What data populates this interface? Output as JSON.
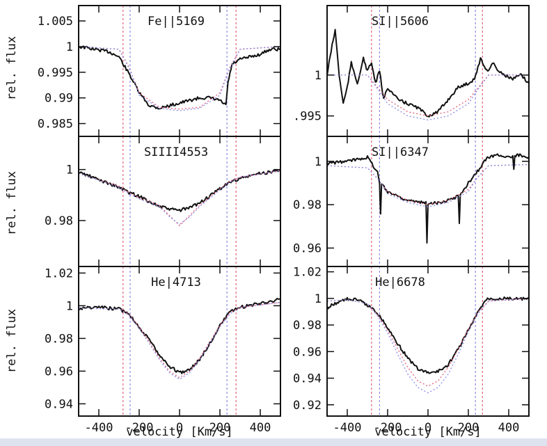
{
  "colors": {
    "model_red": "#e0607a",
    "model_blue": "#8a8ae8",
    "observed": "#111111"
  },
  "chart_data": [
    {
      "type": "line",
      "title": "Fe||5169",
      "xlabel": "",
      "ylabel": "rel. flux",
      "xlim": [
        -500,
        500
      ],
      "ylim": [
        0.9825,
        1.008
      ],
      "yticks": [
        1.005,
        1,
        0.995,
        0.99,
        0.985
      ],
      "ytick_labels": [
        "1.005",
        "1",
        "0.995",
        "0.99",
        "0.985"
      ],
      "xticks": [
        -400,
        -200,
        0,
        200,
        400
      ],
      "xtick_labels": [
        "",
        "",
        "",
        "",
        ""
      ],
      "vlines": {
        "red": [
          -280,
          280
        ],
        "blue": [
          -245,
          235
        ]
      },
      "series": [
        {
          "role": "observed",
          "x": [
            -500,
            -420,
            -350,
            -300,
            -270,
            -240,
            -200,
            -150,
            -100,
            -50,
            0,
            50,
            100,
            150,
            200,
            230,
            240,
            260,
            300,
            350,
            400,
            450,
            500
          ],
          "y": [
            1.0,
            0.9995,
            0.999,
            0.998,
            0.996,
            0.994,
            0.991,
            0.9885,
            0.988,
            0.9885,
            0.989,
            0.9895,
            0.99,
            0.99,
            0.9895,
            0.9885,
            0.993,
            0.9965,
            0.9975,
            0.998,
            0.9985,
            0.9995,
            0.9995
          ]
        },
        {
          "role": "model-red",
          "x": [
            -500,
            -300,
            -250,
            -200,
            -100,
            0,
            100,
            200,
            250,
            300,
            500
          ],
          "y": [
            1.0,
            0.9995,
            0.996,
            0.991,
            0.9882,
            0.9878,
            0.9882,
            0.991,
            0.996,
            0.9995,
            1.0
          ]
        },
        {
          "role": "model-blue",
          "x": [
            -500,
            -300,
            -240,
            -200,
            -100,
            0,
            100,
            200,
            240,
            300,
            500
          ],
          "y": [
            1.0,
            0.9995,
            0.995,
            0.9905,
            0.988,
            0.9875,
            0.988,
            0.9905,
            0.995,
            0.9995,
            1.0
          ]
        }
      ]
    },
    {
      "type": "line",
      "title": "SI||5606",
      "xlabel": "",
      "ylabel": "",
      "xlim": [
        -500,
        500
      ],
      "ylim": [
        0.9925,
        1.0085
      ],
      "yticks": [
        1,
        0.995
      ],
      "ytick_labels": [
        "1",
        ".995"
      ],
      "xticks": [
        -400,
        -200,
        0,
        200,
        400
      ],
      "xtick_labels": [
        "",
        "",
        "",
        "",
        ""
      ],
      "vlines": {
        "red": [
          -280,
          270
        ],
        "blue": [
          -240,
          235
        ]
      },
      "series": [
        {
          "role": "observed",
          "x": [
            -500,
            -480,
            -460,
            -440,
            -420,
            -400,
            -380,
            -350,
            -320,
            -300,
            -280,
            -260,
            -240,
            -220,
            -200,
            -150,
            -100,
            -50,
            0,
            50,
            100,
            150,
            200,
            230,
            260,
            280,
            300,
            320,
            350,
            380,
            420,
            460,
            500
          ],
          "y": [
            1.0,
            1.003,
            1.0055,
            1.0,
            0.9965,
            0.9985,
            1.0015,
            0.999,
            1.002,
            1.0005,
            1.0015,
            0.999,
            1.0005,
            0.997,
            0.9985,
            0.997,
            0.9965,
            0.996,
            0.995,
            0.9955,
            0.997,
            0.9985,
            0.999,
            0.9995,
            1.002,
            1.001,
            1.0005,
            1.0015,
            1.0005,
            1.0,
            0.9995,
            1.0,
            0.999
          ]
        },
        {
          "role": "model-red",
          "x": [
            -500,
            -300,
            -250,
            -200,
            -100,
            0,
            100,
            200,
            250,
            300,
            500
          ],
          "y": [
            1.0,
            1.0,
            0.9985,
            0.997,
            0.9955,
            0.995,
            0.9955,
            0.997,
            0.9985,
            1.0,
            1.0
          ]
        },
        {
          "role": "model-blue",
          "x": [
            -500,
            -300,
            -240,
            -200,
            -100,
            0,
            100,
            200,
            240,
            300,
            500
          ],
          "y": [
            1.0,
            1.0,
            0.998,
            0.9965,
            0.995,
            0.9945,
            0.995,
            0.9965,
            0.998,
            1.0,
            1.0
          ]
        }
      ]
    },
    {
      "type": "line",
      "title": "SIIII4553",
      "xlabel": "",
      "ylabel": "rel. flux",
      "xlim": [
        -500,
        500
      ],
      "ylim": [
        0.962,
        1.013
      ],
      "yticks": [
        1,
        0.98
      ],
      "ytick_labels": [
        "1",
        "0.98"
      ],
      "xticks": [
        -400,
        -200,
        0,
        200,
        400
      ],
      "xtick_labels": [
        "",
        "",
        "",
        "",
        ""
      ],
      "vlines": {
        "red": [
          -280,
          280
        ],
        "blue": [
          -245,
          235
        ]
      },
      "series": [
        {
          "role": "observed",
          "x": [
            -500,
            -450,
            -400,
            -350,
            -300,
            -250,
            -200,
            -150,
            -100,
            -50,
            0,
            50,
            100,
            150,
            200,
            250,
            300,
            350,
            400,
            450,
            500
          ],
          "y": [
            0.999,
            0.9975,
            0.996,
            0.9945,
            0.993,
            0.991,
            0.9895,
            0.9875,
            0.9855,
            0.9845,
            0.984,
            0.985,
            0.987,
            0.9895,
            0.9925,
            0.995,
            0.9965,
            0.9975,
            0.9985,
            0.999,
            1.0
          ]
        },
        {
          "role": "model-red",
          "x": [
            -500,
            -300,
            -250,
            -200,
            -100,
            -50,
            0,
            50,
            100,
            200,
            250,
            300,
            500
          ],
          "y": [
            0.9985,
            0.9935,
            0.991,
            0.989,
            0.986,
            0.982,
            0.978,
            0.982,
            0.986,
            0.9925,
            0.9955,
            0.997,
            0.9995
          ]
        },
        {
          "role": "model-blue",
          "x": [
            -500,
            -300,
            -250,
            -200,
            -100,
            -50,
            0,
            50,
            100,
            200,
            250,
            300,
            500
          ],
          "y": [
            0.9985,
            0.993,
            0.9905,
            0.9885,
            0.9855,
            0.9815,
            0.9785,
            0.9815,
            0.9855,
            0.992,
            0.995,
            0.997,
            0.9995
          ]
        }
      ]
    },
    {
      "type": "line",
      "title": "SI||6347",
      "xlabel": "",
      "ylabel": "",
      "xlim": [
        -500,
        500
      ],
      "ylim": [
        0.9515,
        1.0115
      ],
      "yticks": [
        1,
        0.98,
        0.96
      ],
      "ytick_labels": [
        "1",
        "0.98",
        "0.96"
      ],
      "xticks": [
        -400,
        -200,
        0,
        200,
        400
      ],
      "xtick_labels": [
        "",
        "",
        "",
        "",
        ""
      ],
      "vlines": {
        "red": [
          -280,
          270
        ],
        "blue": [
          -240,
          235
        ]
      },
      "series": [
        {
          "role": "observed",
          "x": [
            -500,
            -400,
            -300,
            -250,
            -240,
            -235,
            -230,
            -200,
            -150,
            -100,
            -50,
            -10,
            -5,
            0,
            5,
            50,
            100,
            150,
            155,
            160,
            165,
            200,
            250,
            280,
            300,
            350,
            400,
            420,
            425,
            430,
            450,
            500
          ],
          "y": [
            0.999,
            1.0,
            1.002,
            0.995,
            0.99,
            0.975,
            0.99,
            0.986,
            0.984,
            0.982,
            0.981,
            0.981,
            0.962,
            0.98,
            0.981,
            0.981,
            0.982,
            0.984,
            0.972,
            0.984,
            0.985,
            0.99,
            0.996,
            1.0,
            1.002,
            1.003,
            1.002,
            1.002,
            0.996,
            1.002,
            1.003,
            1.002
          ]
        },
        {
          "role": "model-red",
          "x": [
            -500,
            -300,
            -250,
            -200,
            -100,
            0,
            100,
            200,
            250,
            300,
            500
          ],
          "y": [
            0.998,
            0.997,
            0.992,
            0.986,
            0.982,
            0.98,
            0.982,
            0.987,
            0.993,
            0.998,
            0.9985
          ]
        },
        {
          "role": "model-blue",
          "x": [
            -500,
            -300,
            -240,
            -200,
            -100,
            0,
            100,
            200,
            240,
            300,
            500
          ],
          "y": [
            0.998,
            0.997,
            0.991,
            0.985,
            0.981,
            0.979,
            0.981,
            0.986,
            0.992,
            0.998,
            0.9985
          ]
        }
      ]
    },
    {
      "type": "line",
      "title": "He|4713",
      "xlabel": "velocity [Km/s]",
      "ylabel": "rel. flux",
      "xlim": [
        -500,
        500
      ],
      "ylim": [
        0.9325,
        1.024
      ],
      "yticks": [
        1.02,
        1,
        0.98,
        0.96,
        0.94
      ],
      "ytick_labels": [
        "1.02",
        "1",
        "0.98",
        "0.96",
        "0.94"
      ],
      "xticks": [
        -400,
        -200,
        0,
        200,
        400
      ],
      "xtick_labels": [
        "-400",
        "-200",
        "0",
        "200",
        "400"
      ],
      "vlines": {
        "red": [
          -280,
          280
        ],
        "blue": [
          -245,
          235
        ]
      },
      "series": [
        {
          "role": "observed",
          "x": [
            -500,
            -400,
            -300,
            -250,
            -200,
            -150,
            -100,
            -50,
            0,
            50,
            100,
            150,
            200,
            250,
            300,
            400,
            500
          ],
          "y": [
            0.9985,
            0.999,
            0.998,
            0.995,
            0.987,
            0.979,
            0.97,
            0.963,
            0.959,
            0.961,
            0.967,
            0.977,
            0.988,
            0.996,
            0.999,
            1.0015,
            1.004
          ]
        },
        {
          "role": "model-red",
          "x": [
            -500,
            -300,
            -250,
            -200,
            -150,
            -100,
            -50,
            0,
            50,
            100,
            150,
            200,
            250,
            300,
            500
          ],
          "y": [
            0.9985,
            0.998,
            0.995,
            0.987,
            0.978,
            0.968,
            0.96,
            0.956,
            0.96,
            0.968,
            0.978,
            0.988,
            0.996,
            0.999,
            1.002
          ]
        },
        {
          "role": "model-blue",
          "x": [
            -500,
            -300,
            -250,
            -200,
            -150,
            -100,
            -50,
            0,
            50,
            100,
            150,
            200,
            250,
            300,
            500
          ],
          "y": [
            0.9985,
            0.998,
            0.994,
            0.986,
            0.977,
            0.967,
            0.959,
            0.955,
            0.959,
            0.967,
            0.977,
            0.987,
            0.995,
            0.999,
            1.002
          ]
        }
      ]
    },
    {
      "type": "line",
      "title": "He|6678",
      "xlabel": "velocity [Km/s]",
      "ylabel": "",
      "xlim": [
        -500,
        500
      ],
      "ylim": [
        0.9115,
        1.024
      ],
      "yticks": [
        1.02,
        1,
        0.98,
        0.96,
        0.94,
        0.92
      ],
      "ytick_labels": [
        "1.02",
        "1",
        "0.98",
        "0.96",
        "0.94",
        "0.92"
      ],
      "xticks": [
        -400,
        -200,
        0,
        200,
        400
      ],
      "xtick_labels": [
        "-400",
        "-200",
        "0",
        "200",
        "400"
      ],
      "vlines": {
        "red": [
          -280,
          270
        ],
        "blue": [
          -240,
          235
        ]
      },
      "series": [
        {
          "role": "observed",
          "x": [
            -500,
            -450,
            -400,
            -350,
            -300,
            -250,
            -200,
            -150,
            -100,
            -50,
            0,
            50,
            100,
            150,
            200,
            250,
            280,
            300,
            350,
            400,
            450,
            500
          ],
          "y": [
            0.993,
            0.997,
            0.9995,
            0.999,
            0.995,
            0.989,
            0.978,
            0.966,
            0.955,
            0.947,
            0.944,
            0.945,
            0.95,
            0.962,
            0.976,
            0.99,
            0.998,
            1.0,
            1.0,
            1.0,
            0.9995,
            0.9995
          ]
        },
        {
          "role": "model-red",
          "x": [
            -500,
            -400,
            -300,
            -250,
            -200,
            -150,
            -100,
            -50,
            0,
            50,
            100,
            150,
            200,
            250,
            300,
            500
          ],
          "y": [
            0.998,
            0.999,
            0.996,
            0.988,
            0.976,
            0.962,
            0.948,
            0.938,
            0.934,
            0.938,
            0.948,
            0.962,
            0.977,
            0.99,
            0.998,
            1.0
          ]
        },
        {
          "role": "model-blue",
          "x": [
            -500,
            -400,
            -300,
            -250,
            -200,
            -150,
            -100,
            -50,
            0,
            50,
            100,
            150,
            200,
            250,
            300,
            500
          ],
          "y": [
            0.998,
            0.999,
            0.996,
            0.987,
            0.974,
            0.958,
            0.943,
            0.933,
            0.929,
            0.933,
            0.943,
            0.958,
            0.975,
            0.989,
            0.998,
            1.0
          ]
        }
      ]
    }
  ]
}
